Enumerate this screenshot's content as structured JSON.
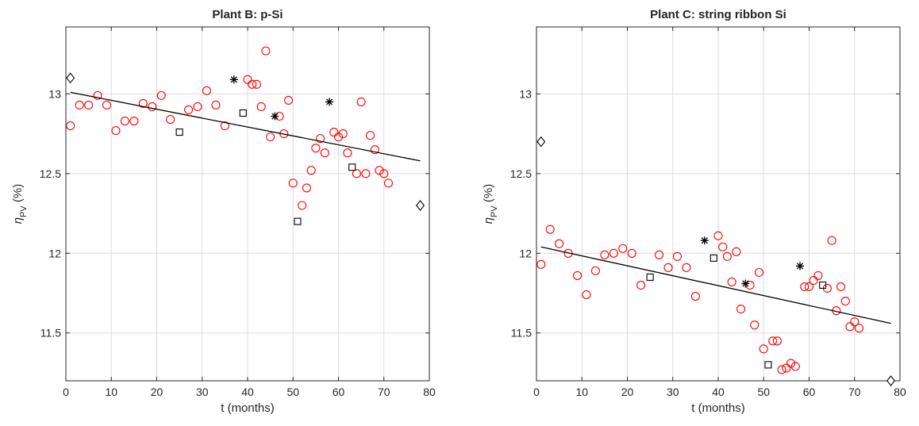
{
  "chart_data": [
    {
      "type": "scatter",
      "title": "Plant B: p-Si",
      "xlabel": "t (months)",
      "ylabel": {
        "symbol": "η",
        "subscript": "PV",
        "unit": " (%)"
      },
      "xlim": [
        0,
        80
      ],
      "ylim": [
        11.2,
        13.42
      ],
      "xticks": [
        "0",
        "10",
        "20",
        "30",
        "40",
        "50",
        "60",
        "70",
        "80"
      ],
      "yticks": [
        "11.5",
        "12",
        "12.5",
        "13"
      ],
      "grid": true,
      "colors": {
        "circles": "#ff0000",
        "stars": "#000000",
        "squares": "#000000",
        "diamonds": "#000000",
        "line": "#000000"
      },
      "series": [
        {
          "marker": "circle",
          "x": [
            1,
            3,
            5,
            7,
            9,
            11,
            13,
            15,
            17,
            19,
            21,
            23,
            27,
            29,
            31,
            33,
            35,
            40,
            41,
            42,
            43,
            44,
            45,
            47,
            48,
            49,
            50,
            52,
            53,
            54,
            55,
            56,
            57,
            59,
            60,
            61,
            62,
            64,
            65,
            66,
            67,
            68,
            69,
            70,
            71
          ],
          "y": [
            12.8,
            12.93,
            12.93,
            12.99,
            12.93,
            12.77,
            12.83,
            12.83,
            12.94,
            12.92,
            12.99,
            12.84,
            12.9,
            12.92,
            13.02,
            12.93,
            12.8,
            13.09,
            13.06,
            13.06,
            12.92,
            13.27,
            12.73,
            12.86,
            12.75,
            12.96,
            12.44,
            12.3,
            12.41,
            12.52,
            12.66,
            12.72,
            12.63,
            12.76,
            12.73,
            12.75,
            12.63,
            12.5,
            12.95,
            12.5,
            12.74,
            12.65,
            12.52,
            12.5,
            12.44
          ]
        },
        {
          "marker": "star",
          "x": [
            37,
            46,
            58
          ],
          "y": [
            13.09,
            12.86,
            12.95
          ]
        },
        {
          "marker": "square",
          "x": [
            25,
            39,
            51,
            63
          ],
          "y": [
            12.76,
            12.88,
            12.2,
            12.54
          ]
        },
        {
          "marker": "diamond",
          "x": [
            1,
            78
          ],
          "y": [
            13.1,
            12.3
          ]
        },
        {
          "marker": "line",
          "x": [
            1,
            78
          ],
          "y": [
            13.01,
            12.58
          ]
        }
      ]
    },
    {
      "type": "scatter",
      "title": "Plant C: string ribbon Si",
      "xlabel": "t (months)",
      "ylabel": {
        "symbol": "η",
        "subscript": "PV",
        "unit": " (%)"
      },
      "xlim": [
        0,
        80
      ],
      "ylim": [
        11.2,
        13.42
      ],
      "xticks": [
        "0",
        "10",
        "20",
        "30",
        "40",
        "50",
        "60",
        "70",
        "80"
      ],
      "yticks": [
        "11.5",
        "12",
        "12.5",
        "13"
      ],
      "grid": true,
      "colors": {
        "circles": "#ff0000",
        "stars": "#000000",
        "squares": "#000000",
        "diamonds": "#000000",
        "line": "#000000"
      },
      "series": [
        {
          "marker": "circle",
          "x": [
            1,
            3,
            5,
            7,
            9,
            11,
            13,
            15,
            17,
            19,
            21,
            23,
            27,
            29,
            31,
            33,
            35,
            40,
            41,
            42,
            43,
            44,
            45,
            47,
            48,
            49,
            50,
            52,
            53,
            54,
            55,
            56,
            57,
            59,
            60,
            61,
            62,
            64,
            65,
            66,
            67,
            68,
            69,
            70,
            71
          ],
          "y": [
            11.93,
            12.15,
            12.06,
            12.0,
            11.86,
            11.74,
            11.89,
            11.99,
            12.0,
            12.03,
            12.0,
            11.8,
            11.99,
            11.91,
            11.98,
            11.91,
            11.73,
            12.11,
            12.04,
            11.98,
            11.82,
            12.01,
            11.65,
            11.8,
            11.55,
            11.88,
            11.4,
            11.45,
            11.45,
            11.27,
            11.28,
            11.31,
            11.29,
            11.79,
            11.79,
            11.83,
            11.86,
            11.78,
            12.08,
            11.64,
            11.79,
            11.7,
            11.54,
            11.57,
            11.53
          ]
        },
        {
          "marker": "star",
          "x": [
            37,
            46,
            58
          ],
          "y": [
            12.08,
            11.81,
            11.92
          ]
        },
        {
          "marker": "square",
          "x": [
            25,
            39,
            51,
            63
          ],
          "y": [
            11.85,
            11.97,
            11.3,
            11.8
          ]
        },
        {
          "marker": "diamond",
          "x": [
            1,
            78
          ],
          "y": [
            12.7,
            11.2
          ]
        },
        {
          "marker": "line",
          "x": [
            1,
            78
          ],
          "y": [
            12.04,
            11.56
          ]
        }
      ]
    }
  ]
}
